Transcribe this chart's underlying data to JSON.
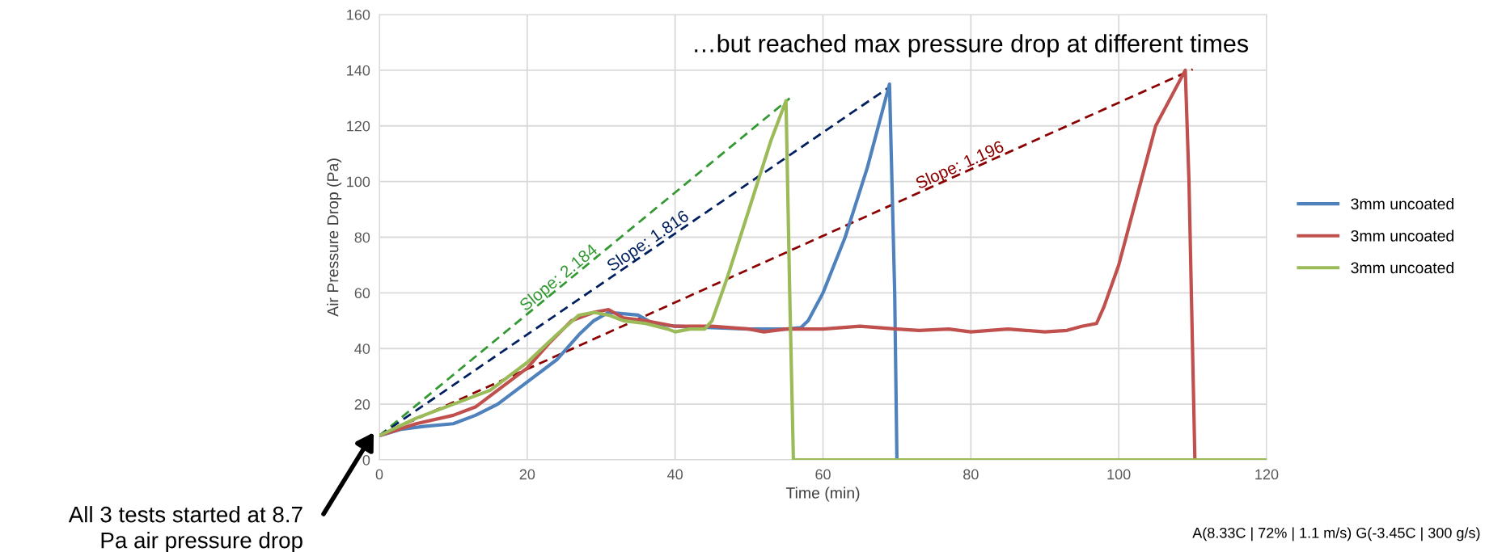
{
  "chart_data": {
    "type": "line",
    "xlabel": "Time (min)",
    "ylabel": "Air Pressure Drop (Pa)",
    "xlim": [
      0,
      120
    ],
    "xticks": [
      0,
      20,
      40,
      60,
      80,
      100,
      120
    ],
    "ylim": [
      0,
      160
    ],
    "yticks": [
      0,
      20,
      40,
      60,
      80,
      100,
      120,
      140,
      160
    ],
    "grid": true,
    "legend": "right",
    "marker": "none",
    "series": [
      {
        "name": "3mm uncoated",
        "color": "#4f81bd",
        "x": [
          0,
          3,
          6,
          10,
          13,
          16,
          20,
          24,
          27,
          29,
          31,
          35,
          37,
          40,
          45,
          50,
          55,
          57,
          58,
          60,
          63,
          66,
          68,
          69,
          69.7,
          70,
          120
        ],
        "values": [
          8.7,
          11,
          12,
          13,
          16,
          20,
          28,
          36,
          45,
          50,
          53,
          52,
          49,
          48,
          47.5,
          47,
          47,
          47.5,
          50,
          60,
          80,
          105,
          125,
          135,
          60,
          0,
          0
        ]
      },
      {
        "name": "3mm uncoated",
        "color": "#c0504d",
        "x": [
          0,
          5,
          10,
          13,
          16,
          20,
          23,
          26,
          29,
          31,
          33,
          36,
          40,
          45,
          50,
          52,
          55,
          60,
          65,
          70,
          73,
          77,
          80,
          85,
          90,
          93,
          95,
          97,
          98,
          100,
          103,
          105,
          109,
          109.5,
          110.3,
          120
        ],
        "values": [
          8.7,
          13,
          16,
          19,
          25,
          33,
          42,
          50,
          53,
          54,
          51,
          50,
          48,
          48,
          47,
          46,
          47,
          47,
          48,
          47,
          46.5,
          47,
          46,
          47,
          46,
          46.5,
          48,
          49,
          55,
          70,
          100,
          120,
          140,
          100,
          0,
          0
        ]
      },
      {
        "name": "3mm uncoated",
        "color": "#9bbb59",
        "x": [
          0,
          5,
          10,
          15,
          20,
          24,
          27,
          29,
          31,
          33,
          36,
          39,
          40,
          42,
          44,
          45,
          47,
          50,
          53,
          55,
          55.5,
          56,
          120
        ],
        "values": [
          8.7,
          15,
          20,
          25,
          35,
          45,
          52,
          53,
          52,
          50,
          49,
          47,
          46,
          47,
          47,
          50,
          65,
          90,
          115,
          129,
          60,
          0,
          0
        ]
      },
      {
        "color": "#339933",
        "line_style": "dashed",
        "x": [
          0,
          55.5
        ],
        "values": [
          8.7,
          129.9
        ]
      },
      {
        "color": "#002060",
        "line_style": "dashed",
        "x": [
          0,
          69
        ],
        "values": [
          8.7,
          134
        ]
      },
      {
        "color": "#8b0000",
        "line_style": "dashed",
        "x": [
          0,
          110
        ],
        "values": [
          8.7,
          140.3
        ]
      }
    ],
    "annotations": [
      "…but reached max pressure drop at different times",
      {
        "text": "Slope: 2.184",
        "x": 25,
        "y": 63
      },
      {
        "text": "Slope: 1.816",
        "x": 37,
        "y": 76
      },
      {
        "text": "Slope: 1.196",
        "x": 79,
        "y": 103
      },
      "All 3 tests started at 8.7\nPa air pressure drop",
      "A(8.33C | 72% | 1.1 m/s) G(-3.45C | 300 g/s)"
    ]
  }
}
